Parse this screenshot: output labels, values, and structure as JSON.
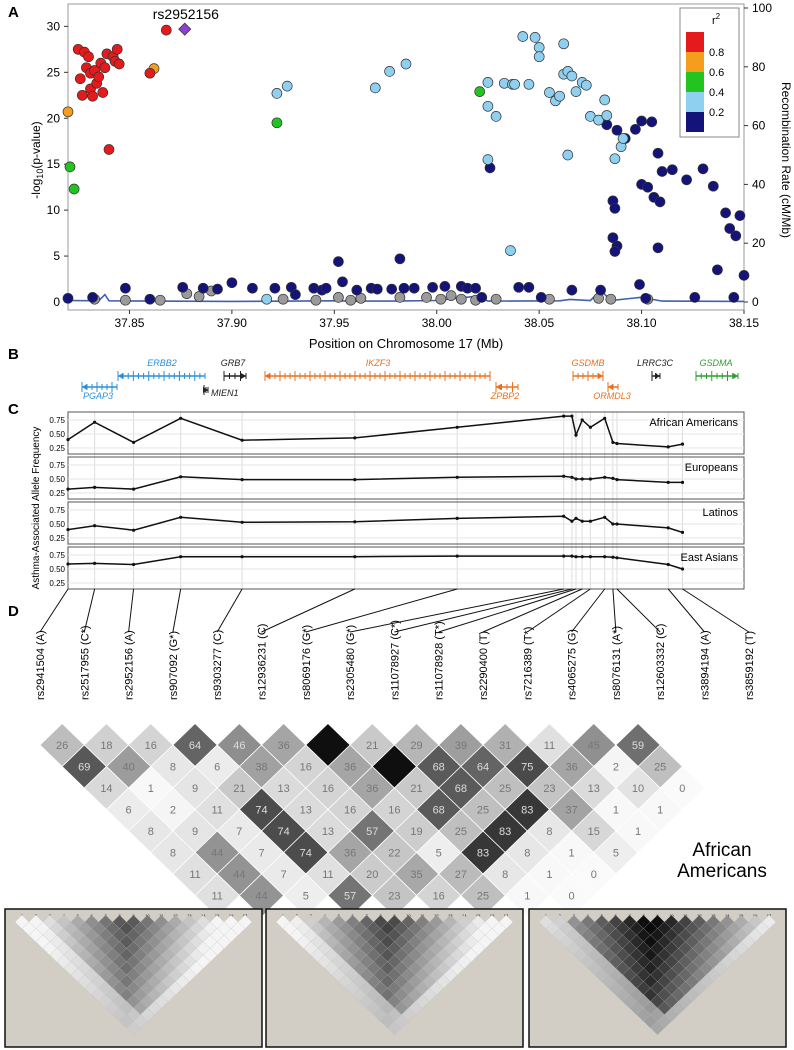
{
  "panels": {
    "a": "A",
    "b": "B",
    "c": "C",
    "d": "D"
  },
  "colors": {
    "red": "#e41a1c",
    "orange": "#f59d1c",
    "green": "#21c421",
    "lightblue": "#8fd0f0",
    "navy": "#13137a",
    "grey": "#9a9a9a",
    "purple": "#8c3fd6",
    "recomb": "#4060b0",
    "gene_blue": "#2b8fd8",
    "gene_black": "#222222",
    "gene_orange": "#e8701e",
    "gene_green": "#2f9e2f"
  },
  "chart_data": [
    {
      "type": "scatter",
      "title": "",
      "xlabel": "Position on Chromosome 17 (Mb)",
      "ylabel": "-log10(p-value)",
      "ylabel_right": "Recombination Rate (cM/Mb)",
      "xlim": [
        37.82,
        38.15
      ],
      "ylim": [
        0,
        32
      ],
      "ylim_right": [
        0,
        100
      ],
      "x_ticks": [
        "37.85",
        "37.90",
        "37.95",
        "38.00",
        "38.05",
        "38.10",
        "38.15"
      ],
      "y_ticks": [
        "0",
        "5",
        "10",
        "15",
        "20",
        "25",
        "30"
      ],
      "y_ticks_right": [
        "0",
        "20",
        "40",
        "60",
        "80",
        "100"
      ],
      "lead_snp": {
        "label": "rs2952156",
        "x": 37.877,
        "y": 29.7
      },
      "legend": {
        "title": "r2",
        "entries": [
          "0.8",
          "0.6",
          "0.4",
          "0.2"
        ]
      },
      "series": [
        {
          "name": "r2 > 0.8",
          "color": "red",
          "points": [
            [
              37.825,
              27.5
            ],
            [
              37.826,
              24.3
            ],
            [
              37.827,
              22.5
            ],
            [
              37.828,
              27.2
            ],
            [
              37.829,
              25.5
            ],
            [
              37.83,
              26.7
            ],
            [
              37.831,
              24.9
            ],
            [
              37.831,
              23.2
            ],
            [
              37.832,
              22.4
            ],
            [
              37.833,
              25.2
            ],
            [
              37.834,
              23.8
            ],
            [
              37.835,
              24.5
            ],
            [
              37.836,
              26.0
            ],
            [
              37.837,
              22.8
            ],
            [
              37.838,
              25.5
            ],
            [
              37.839,
              27.0
            ],
            [
              37.84,
              16.6
            ],
            [
              37.842,
              26.7
            ],
            [
              37.843,
              26.2
            ],
            [
              37.844,
              27.5
            ],
            [
              37.845,
              25.9
            ],
            [
              37.86,
              24.9
            ],
            [
              37.868,
              29.6
            ]
          ]
        },
        {
          "name": "0.6-0.8",
          "color": "orange",
          "points": [
            [
              37.82,
              20.7
            ],
            [
              37.862,
              25.4
            ]
          ]
        },
        {
          "name": "0.4-0.6",
          "color": "green",
          "points": [
            [
              37.821,
              14.7
            ],
            [
              37.823,
              12.3
            ],
            [
              37.922,
              19.5
            ],
            [
              38.021,
              22.9
            ]
          ]
        },
        {
          "name": "0.2-0.4",
          "color": "lightblue",
          "points": [
            [
              37.922,
              22.7
            ],
            [
              37.927,
              23.5
            ],
            [
              37.97,
              23.3
            ],
            [
              37.977,
              25.1
            ],
            [
              37.985,
              25.9
            ],
            [
              38.025,
              23.9
            ],
            [
              38.025,
              15.5
            ],
            [
              38.025,
              21.3
            ],
            [
              38.029,
              20.2
            ],
            [
              38.033,
              23.8
            ],
            [
              38.037,
              23.7
            ],
            [
              38.038,
              23.7
            ],
            [
              38.042,
              28.9
            ],
            [
              38.045,
              23.7
            ],
            [
              38.048,
              28.8
            ],
            [
              38.05,
              27.7
            ],
            [
              38.05,
              26.7
            ],
            [
              38.055,
              22.8
            ],
            [
              38.058,
              21.9
            ],
            [
              38.06,
              22.4
            ],
            [
              38.062,
              24.8
            ],
            [
              38.062,
              28.1
            ],
            [
              38.064,
              25.1
            ],
            [
              38.064,
              16.0
            ],
            [
              38.066,
              24.6
            ],
            [
              38.068,
              22.9
            ],
            [
              38.071,
              23.9
            ],
            [
              38.073,
              23.6
            ],
            [
              38.075,
              20.2
            ],
            [
              38.079,
              19.8
            ],
            [
              38.082,
              22.0
            ],
            [
              38.083,
              20.3
            ],
            [
              38.087,
              15.6
            ],
            [
              38.09,
              16.9
            ],
            [
              38.091,
              17.8
            ],
            [
              38.036,
              5.6
            ],
            [
              37.917,
              0.3
            ]
          ]
        },
        {
          "name": "< 0.2",
          "color": "navy",
          "points": [
            [
              37.82,
              0.4
            ],
            [
              37.832,
              0.5
            ],
            [
              37.848,
              1.5
            ],
            [
              37.86,
              0.3
            ],
            [
              37.876,
              1.6
            ],
            [
              37.886,
              1.5
            ],
            [
              37.893,
              1.4
            ],
            [
              37.9,
              2.1
            ],
            [
              37.91,
              1.5
            ],
            [
              37.921,
              1.5
            ],
            [
              37.929,
              1.6
            ],
            [
              37.931,
              0.8
            ],
            [
              37.94,
              1.5
            ],
            [
              37.944,
              1.3
            ],
            [
              37.946,
              1.5
            ],
            [
              37.952,
              4.4
            ],
            [
              37.954,
              2.2
            ],
            [
              37.961,
              1.3
            ],
            [
              37.968,
              1.5
            ],
            [
              37.971,
              1.4
            ],
            [
              37.978,
              1.4
            ],
            [
              37.982,
              4.7
            ],
            [
              37.984,
              1.5
            ],
            [
              37.989,
              1.5
            ],
            [
              37.998,
              1.6
            ],
            [
              38.004,
              1.7
            ],
            [
              38.012,
              1.7
            ],
            [
              38.015,
              1.5
            ],
            [
              38.019,
              1.5
            ],
            [
              38.022,
              0.5
            ],
            [
              38.026,
              14.6
            ],
            [
              38.04,
              1.6
            ],
            [
              38.045,
              1.6
            ],
            [
              38.051,
              0.5
            ],
            [
              38.066,
              1.3
            ],
            [
              38.08,
              1.3
            ],
            [
              38.083,
              19.3
            ],
            [
              38.088,
              18.7
            ],
            [
              38.092,
              17.8
            ],
            [
              38.097,
              18.8
            ],
            [
              38.1,
              19.7
            ],
            [
              38.105,
              19.6
            ],
            [
              38.108,
              16.2
            ],
            [
              38.11,
              14.2
            ],
            [
              38.1,
              12.8
            ],
            [
              38.103,
              12.5
            ],
            [
              38.106,
              11.4
            ],
            [
              38.109,
              10.9
            ],
            [
              38.115,
              14.4
            ],
            [
              38.122,
              13.3
            ],
            [
              38.13,
              14.5
            ],
            [
              38.135,
              12.6
            ],
            [
              38.141,
              9.7
            ],
            [
              38.148,
              9.4
            ],
            [
              38.143,
              8.0
            ],
            [
              38.146,
              7.2
            ],
            [
              38.15,
              2.9
            ],
            [
              38.086,
              11.0
            ],
            [
              38.087,
              10.2
            ],
            [
              38.086,
              7.0
            ],
            [
              38.088,
              6.1
            ],
            [
              38.087,
              5.5
            ],
            [
              38.108,
              5.9
            ],
            [
              38.137,
              3.5
            ],
            [
              38.099,
              1.9
            ],
            [
              38.102,
              0.4
            ],
            [
              38.126,
              0.5
            ],
            [
              38.145,
              0.5
            ]
          ]
        },
        {
          "name": "no LD",
          "color": "grey",
          "points": [
            [
              37.833,
              0.3
            ],
            [
              37.848,
              0.2
            ],
            [
              37.865,
              0.2
            ],
            [
              37.878,
              0.9
            ],
            [
              37.884,
              0.6
            ],
            [
              37.89,
              1.2
            ],
            [
              37.925,
              0.3
            ],
            [
              37.941,
              0.2
            ],
            [
              37.952,
              0.5
            ],
            [
              37.958,
              0.2
            ],
            [
              37.963,
              0.4
            ],
            [
              37.982,
              0.5
            ],
            [
              37.995,
              0.5
            ],
            [
              38.002,
              0.3
            ],
            [
              38.007,
              0.7
            ],
            [
              38.012,
              0.3
            ],
            [
              38.019,
              0.2
            ],
            [
              38.029,
              0.3
            ],
            [
              38.055,
              0.3
            ],
            [
              38.079,
              0.4
            ],
            [
              38.085,
              0.3
            ],
            [
              38.103,
              0.3
            ]
          ]
        }
      ],
      "recombination_line": [
        [
          37.82,
          0.5
        ],
        [
          37.835,
          0.4
        ],
        [
          37.838,
          2.5
        ],
        [
          37.84,
          0.4
        ],
        [
          37.9,
          0.2
        ],
        [
          37.95,
          0.4
        ],
        [
          37.96,
          0.3
        ],
        [
          37.98,
          0.3
        ],
        [
          38.0,
          0.5
        ],
        [
          38.02,
          2.0
        ],
        [
          38.025,
          0.3
        ],
        [
          38.06,
          0.4
        ],
        [
          38.065,
          0.9
        ],
        [
          38.075,
          0.5
        ],
        [
          38.08,
          4.0
        ],
        [
          38.085,
          0.5
        ],
        [
          38.1,
          1.6
        ],
        [
          38.11,
          0.3
        ],
        [
          38.15,
          0.2
        ]
      ]
    },
    {
      "type": "line",
      "ylabel": "Asthma-Associated Allele Frequency",
      "y_ticks": [
        "0.75",
        "0.50",
        "0.25"
      ],
      "x_positions": [
        37.82,
        37.833,
        37.852,
        37.875,
        37.905,
        37.96,
        38.01,
        38.062,
        38.066,
        38.068,
        38.071,
        38.075,
        38.082,
        38.086,
        38.088,
        38.113,
        38.12
      ],
      "series": [
        {
          "name": "African Americans",
          "values": [
            0.4,
            0.71,
            0.35,
            0.78,
            0.39,
            0.43,
            0.62,
            0.82,
            0.82,
            0.48,
            0.75,
            0.62,
            0.78,
            0.35,
            0.33,
            0.27,
            0.32
          ]
        },
        {
          "name": "Europeans",
          "values": [
            0.32,
            0.35,
            0.32,
            0.54,
            0.49,
            0.49,
            0.53,
            0.55,
            0.53,
            0.5,
            0.5,
            0.5,
            0.53,
            0.51,
            0.49,
            0.44,
            0.44
          ]
        },
        {
          "name": "Latinos",
          "values": [
            0.4,
            0.47,
            0.39,
            0.62,
            0.53,
            0.54,
            0.6,
            0.64,
            0.55,
            0.6,
            0.55,
            0.55,
            0.62,
            0.5,
            0.5,
            0.43,
            0.35
          ]
        },
        {
          "name": "East Asians",
          "values": [
            0.59,
            0.6,
            0.58,
            0.72,
            0.72,
            0.72,
            0.73,
            0.73,
            0.73,
            0.72,
            0.72,
            0.72,
            0.72,
            0.71,
            0.7,
            0.58,
            0.5
          ]
        }
      ]
    }
  ],
  "genes": [
    {
      "name": "ERBB2",
      "color": "gene_blue"
    },
    {
      "name": "PGAP3",
      "color": "gene_blue"
    },
    {
      "name": "GRB7",
      "color": "gene_black"
    },
    {
      "name": "MIEN1",
      "color": "gene_black"
    },
    {
      "name": "IKZF3",
      "color": "gene_orange"
    },
    {
      "name": "ZPBP2",
      "color": "gene_orange"
    },
    {
      "name": "GSDMB",
      "color": "gene_orange"
    },
    {
      "name": "ORMDL3",
      "color": "gene_orange"
    },
    {
      "name": "LRRC3C",
      "color": "gene_black"
    },
    {
      "name": "GSDMA",
      "color": "gene_green"
    }
  ],
  "snps": [
    "rs2941504 (A)",
    "rs2517955 (C*)",
    "rs2952156 (A)",
    "rs907092 (G*)",
    "rs9303277 (C)",
    "rs12936231 (C)",
    "rs8069176 (G*)",
    "rs2305480 (G*)",
    "rs11078927 (C*)",
    "rs11078928 (T*)",
    "rs2290400 (T)",
    "rs7216389 (T*)",
    "rs4065275 (G)",
    "rs8076131 (A*)",
    "rs12603332 (C)",
    "rs3894194 (A)",
    "rs3859192 (T)"
  ],
  "ld_rows": [
    [
      "26",
      "18",
      "16",
      "64",
      "46",
      "36",
      "100",
      "21",
      "29",
      "39",
      "31",
      "11",
      "45",
      "59"
    ],
    [
      "69",
      "40",
      "8",
      "6",
      "38",
      "16",
      "36",
      "100",
      "68",
      "64",
      "75",
      "36",
      "2",
      "25"
    ],
    [
      "14",
      "1",
      "9",
      "21",
      "13",
      "16",
      "36",
      "21",
      "68",
      "25",
      "23",
      "13",
      "10",
      "0"
    ],
    [
      "6",
      "2",
      "11",
      "74",
      "13",
      "16",
      "16",
      "68",
      "25",
      "83",
      "37",
      "1",
      "1"
    ],
    [
      "8",
      "9",
      "7",
      "74",
      "13",
      "57",
      "19",
      "25",
      "83",
      "8",
      "15",
      "1"
    ],
    [
      "8",
      "44",
      "7",
      "74",
      "36",
      "22",
      "5",
      "83",
      "8",
      "1",
      "5"
    ],
    [
      "11",
      "44",
      "7",
      "11",
      "20",
      "35",
      "27",
      "8",
      "1",
      "0"
    ],
    [
      "11",
      "44",
      "5",
      "57",
      "23",
      "16",
      "25",
      "1",
      "0"
    ]
  ],
  "population_label": [
    "African",
    "Americans"
  ],
  "inset_ticks": [
    "1",
    "2",
    "3",
    "4",
    "5",
    "6",
    "7",
    "8",
    "9",
    "10",
    "11",
    "12",
    "13",
    "14",
    "15",
    "16",
    "17"
  ]
}
